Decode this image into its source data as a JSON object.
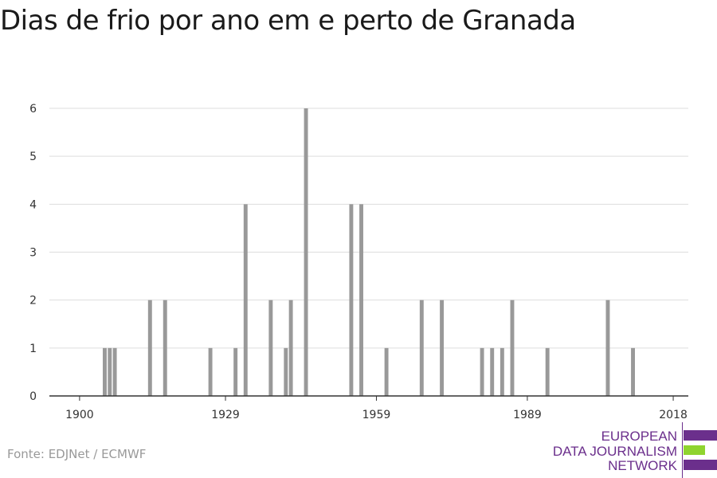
{
  "title": "Dias de frio por ano em e perto de Granada",
  "source": "Fonte: EDJNet / ECMWF",
  "logo": {
    "lines": [
      "EUROPEAN",
      "DATA JOURNALISM",
      "NETWORK"
    ],
    "colors": {
      "purple": "#6b2f8c",
      "green": "#8fd42f"
    }
  },
  "chart_data": {
    "type": "bar",
    "title": "Dias de frio por ano em e perto de Granada",
    "xlabel": "",
    "ylabel": "",
    "xlim": [
      1894,
      2021
    ],
    "ylim": [
      0,
      6
    ],
    "xticks": [
      1900,
      1929,
      1959,
      1989,
      2018
    ],
    "yticks": [
      0,
      1,
      2,
      3,
      4,
      5,
      6
    ],
    "grid": true,
    "bar_color": "#999999",
    "x": [
      1905,
      1906,
      1907,
      1914,
      1917,
      1926,
      1931,
      1933,
      1938,
      1941,
      1942,
      1945,
      1954,
      1956,
      1961,
      1968,
      1972,
      1980,
      1982,
      1984,
      1986,
      1993,
      2005,
      2010
    ],
    "values": [
      1,
      1,
      1,
      2,
      2,
      1,
      1,
      4,
      2,
      1,
      2,
      6,
      4,
      4,
      1,
      2,
      2,
      1,
      1,
      1,
      2,
      1,
      2,
      1
    ]
  }
}
